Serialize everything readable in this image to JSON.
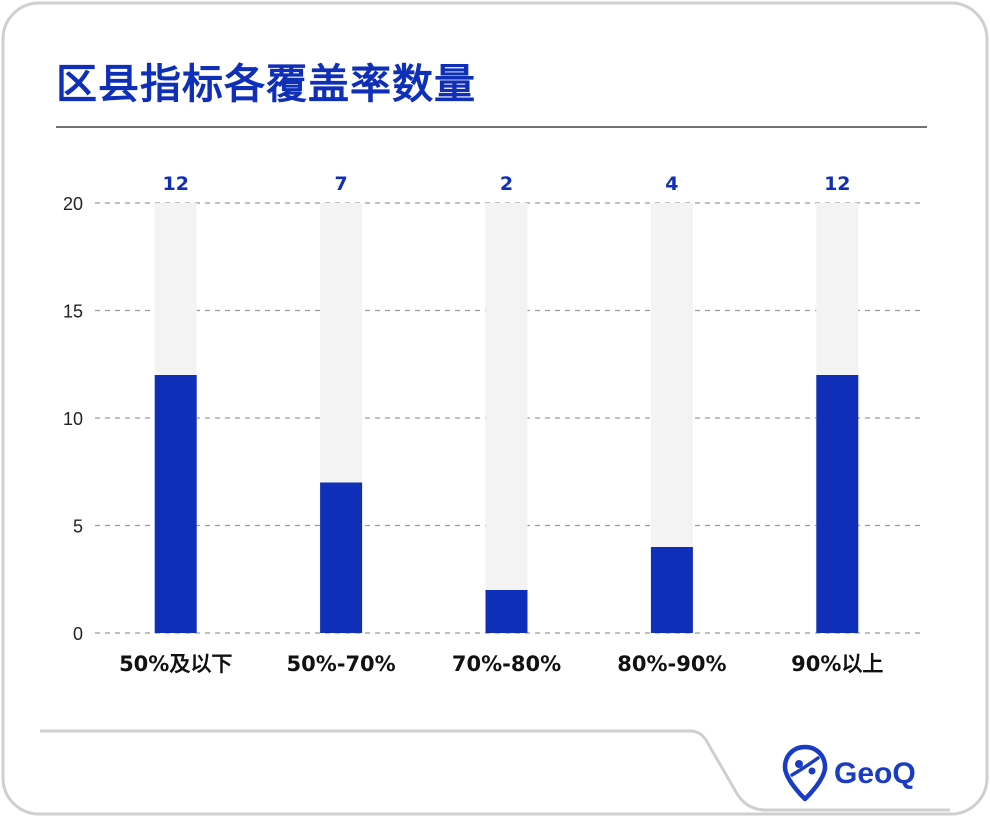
{
  "title": "区县指标各覆盖率数量",
  "brand": "GeoQ",
  "colors": {
    "accent": "#0f2fb8",
    "track": "#f3f3f3",
    "frame": "#cfcfcf"
  },
  "chart_data": {
    "type": "bar",
    "categories": [
      "50%及以下",
      "50%-70%",
      "70%-80%",
      "80%-90%",
      "90%以上"
    ],
    "values": [
      12,
      7,
      2,
      4,
      12
    ],
    "ylim": [
      0,
      20
    ],
    "yticks": [
      0,
      5,
      10,
      15,
      20
    ],
    "background_track_max": 20,
    "grid": "dashed horizontal",
    "legend": "none",
    "title": "区县指标各覆盖率数量",
    "xlabel": "",
    "ylabel": ""
  }
}
